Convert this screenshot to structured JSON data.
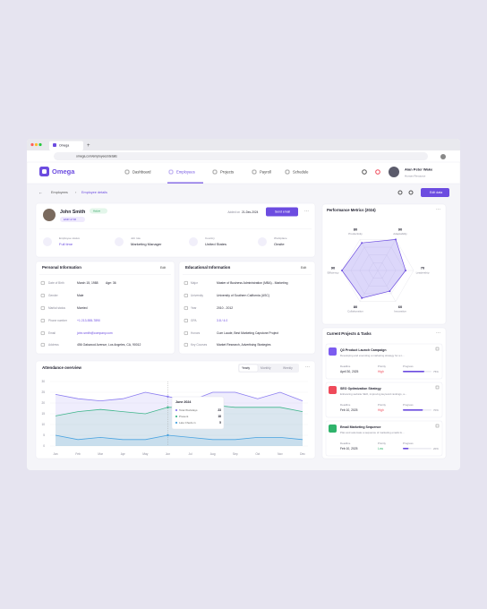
{
  "browser": {
    "tab": "Omega",
    "url": "omega.com/employees/details"
  },
  "nav": {
    "brand": "Omega",
    "items": [
      "Dashboard",
      "Employees",
      "Projects",
      "Payroll",
      "Schedule"
    ],
    "active": 1,
    "user": {
      "name": "Alan Peter Wake",
      "role": "Human Resource"
    }
  },
  "breadcrumb": [
    "Employees",
    "Employee details"
  ],
  "edit_button": "Edit data",
  "employee": {
    "name": "John Smith",
    "status": "Active",
    "id": "EMP-2736",
    "added_label": "Added on",
    "added_date": "21-Dec-2024",
    "send_email": "Send email",
    "stats": [
      {
        "label": "Employee status",
        "value": "Full time"
      },
      {
        "label": "Job role",
        "value": "Marketing Manager"
      },
      {
        "label": "Country",
        "value": "United States"
      },
      {
        "label": "Workplace",
        "value": "Onsite"
      }
    ]
  },
  "personal": {
    "title": "Personal Information",
    "edit": "Edit",
    "age": "Age: 36",
    "rows": [
      {
        "label": "Date of Birth",
        "value": "March 15, 1988"
      },
      {
        "label": "Gender",
        "value": "Male"
      },
      {
        "label": "Marital status",
        "value": "Married"
      },
      {
        "label": "Phone number",
        "value": "+1 213-555-7890"
      },
      {
        "label": "Email",
        "value": "john.smith@company.com"
      },
      {
        "label": "Address",
        "value": "456 Oakwood Avenue, Los Angeles, CA, 90012"
      }
    ]
  },
  "education": {
    "title": "Educational Information",
    "edit": "Edit",
    "rows": [
      {
        "label": "Major",
        "value": "Master of Business Administration (MBA) - Marketing"
      },
      {
        "label": "University",
        "value": "University of Southern California (USC)"
      },
      {
        "label": "Year",
        "value": "2010 - 2012"
      },
      {
        "label": "GPA",
        "value": "3.8 / 4.0"
      },
      {
        "label": "Honors",
        "value": "Cum Laude, Best Marketing Capstone Project"
      },
      {
        "label": "Key Courses",
        "value": "Market Research, Advertising Strategies"
      }
    ]
  },
  "performance": {
    "title": "Performance Metrics (2024)",
    "axes": [
      {
        "name": "Productivity",
        "value": 80
      },
      {
        "name": "Adaptability",
        "value": 90
      },
      {
        "name": "Leadership",
        "value": 70
      },
      {
        "name": "Innovation",
        "value": 60
      },
      {
        "name": "Collaboration",
        "value": 80
      },
      {
        "name": "Efficiency",
        "value": 90
      }
    ]
  },
  "projects": {
    "title": "Current Projects & Tasks",
    "deadline_label": "Deadline",
    "priority_label": "Priority",
    "progress_label": "Progress",
    "items": [
      {
        "name": "Q3 Product Launch Campaign",
        "desc": "Developing and executing a marketing strategy for a n...",
        "deadline": "April 30, 2025",
        "priority": "High",
        "progress": 75,
        "progress_text": "75%",
        "color": "#7c5cf0"
      },
      {
        "name": "SEO Optimization Strategy",
        "desc": "Enhancing website SEO, improving keyword rankings, a...",
        "deadline": "Feb 10, 2025",
        "priority": "High",
        "progress": 70,
        "progress_text": "70%",
        "color": "#ef4a5a"
      },
      {
        "name": "Email Marketing Sequence",
        "desc": "Plan and automate a sequence of marketing emails fo...",
        "deadline": "Feb 10, 2025",
        "priority": "Low",
        "progress": 20,
        "progress_text": "20%",
        "color": "#2fb36b"
      }
    ]
  },
  "attendance": {
    "title": "Attendance overview",
    "tabs": [
      "Yearly",
      "Monthly",
      "Weekly"
    ],
    "months": [
      "Jan",
      "Feb",
      "Mar",
      "Apr",
      "May",
      "Jun",
      "Jul",
      "Aug",
      "Sep",
      "Oct",
      "Nov",
      "Dec"
    ],
    "ylim": [
      0,
      30
    ],
    "yticks": [
      0,
      5,
      10,
      15,
      20,
      25,
      30
    ],
    "series": [
      {
        "name": "Total Workdays",
        "color": "#8b7cf0",
        "values": [
          24,
          22,
          21,
          22,
          25,
          23,
          21,
          25,
          25,
          22,
          25,
          21
        ]
      },
      {
        "name": "Present",
        "color": "#3fb68b",
        "values": [
          14,
          16,
          17,
          16,
          15,
          18,
          18,
          19,
          18,
          18,
          18,
          16
        ]
      },
      {
        "name": "Late Check-in",
        "color": "#4aa3e0",
        "values": [
          5,
          3,
          4,
          3,
          3,
          5,
          4,
          3,
          3,
          4,
          4,
          3
        ]
      }
    ],
    "tooltip": {
      "title": "June 2024",
      "index": 5
    }
  }
}
